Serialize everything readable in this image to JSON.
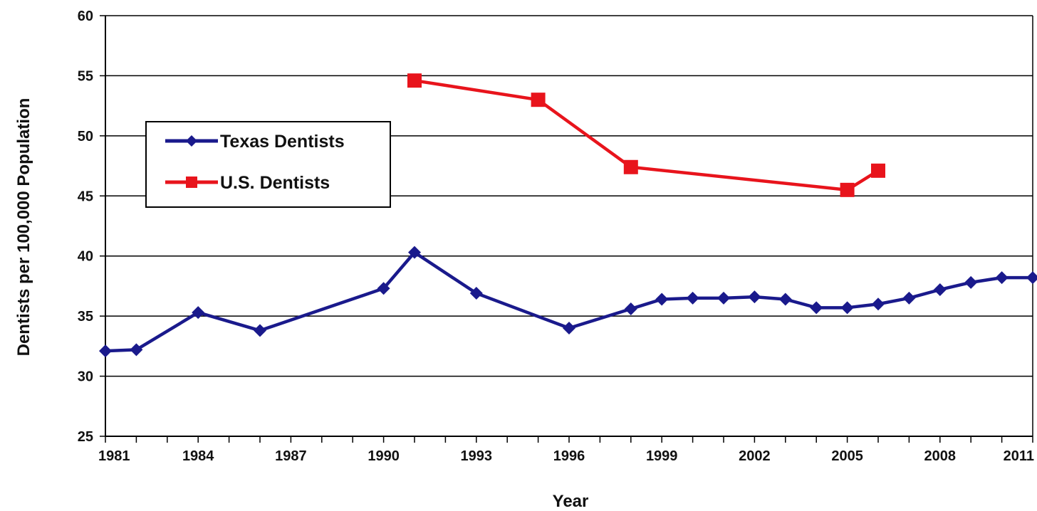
{
  "chart_data": {
    "type": "line",
    "title": "",
    "xlabel": "Year",
    "ylabel": "Dentists per 100,000 Population",
    "xlim": [
      1981,
      2011
    ],
    "ylim": [
      25,
      60
    ],
    "x_ticks": [
      "1981",
      "1984",
      "1987",
      "1990",
      "1993",
      "1996",
      "1999",
      "2002",
      "2005",
      "2008",
      "2011"
    ],
    "y_ticks": [
      "25",
      "30",
      "35",
      "40",
      "45",
      "50",
      "55",
      "60"
    ],
    "grid": "horizontal",
    "legend_position": "upper-left",
    "series": [
      {
        "name": "Texas Dentists",
        "color": "#1a1a8c",
        "marker": "diamond",
        "x": [
          1981,
          1982,
          1984,
          1986,
          1990,
          1991,
          1993,
          1996,
          1998,
          1999,
          2000,
          2001,
          2002,
          2003,
          2004,
          2005,
          2006,
          2007,
          2008,
          2009,
          2010,
          2011
        ],
        "y": [
          32.1,
          32.2,
          35.3,
          33.8,
          37.3,
          40.3,
          36.9,
          34.0,
          35.6,
          36.4,
          36.5,
          36.5,
          36.6,
          36.4,
          35.7,
          35.7,
          36.0,
          36.5,
          37.2,
          37.8,
          38.2,
          38.2
        ]
      },
      {
        "name": "U.S. Dentists",
        "color": "#e8141c",
        "marker": "square",
        "x": [
          1991,
          1995,
          1998,
          2005,
          2006
        ],
        "y": [
          54.6,
          53.0,
          47.4,
          45.5,
          47.1
        ]
      }
    ]
  }
}
